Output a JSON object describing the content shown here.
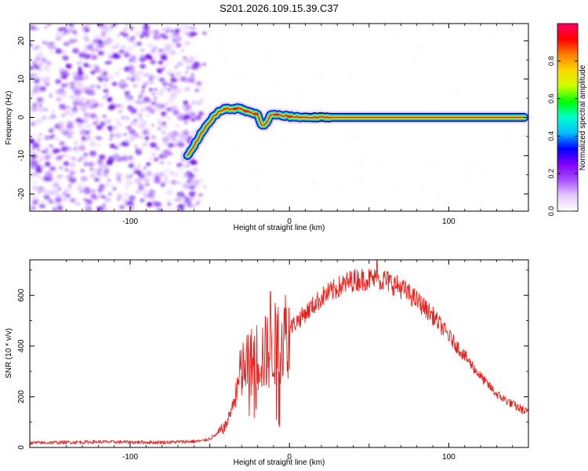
{
  "title": "S201.2026.109.15.39.C37",
  "colors": {
    "line": "#e8231f",
    "trace_red": "#ff1a1a",
    "noise": "#7f20ff",
    "axis": "#000000",
    "frame_bg": "#ffffff"
  },
  "chart_data": [
    {
      "type": "heatmap",
      "name": "spectrogram",
      "title": "S201.2026.109.15.39.C37",
      "xlabel": "Height of straight line (km)",
      "ylabel": "Frequency (Hz)",
      "xlim": [
        -163,
        150
      ],
      "ylim": [
        -24.5,
        24.5
      ],
      "xticks": [
        -100,
        0,
        100
      ],
      "yticks": [
        -20,
        -10,
        0,
        10,
        20
      ],
      "xtick_labels": [
        "-100",
        "0",
        "100"
      ],
      "ytick_labels": [
        "-20",
        "-10",
        "0",
        "10",
        "20"
      ],
      "noise_region_x": [
        -163,
        -60
      ],
      "trace": {
        "x": [
          -64,
          -60,
          -56,
          -52,
          -48,
          -44,
          -40,
          -36,
          -32,
          -28,
          -24,
          -20,
          -18,
          -16,
          -14,
          -12,
          -10,
          -8,
          -6,
          -4,
          -2,
          0,
          5,
          10,
          20,
          40,
          80,
          120,
          148
        ],
        "y": [
          -10,
          -7.5,
          -4.5,
          -2,
          0,
          1.5,
          2.3,
          2,
          2.5,
          1.7,
          1.2,
          0.8,
          -1.8,
          -2.3,
          -1,
          0.5,
          0.8,
          0.7,
          0.5,
          0.3,
          0.4,
          0.2,
          0.1,
          0,
          0,
          0,
          0,
          0,
          0
        ]
      },
      "colorbar": {
        "label": "Normalized spectral amplitude",
        "range": [
          0,
          1
        ],
        "ticks": [
          0.0,
          0.2,
          0.4,
          0.6,
          0.8
        ],
        "tick_labels": [
          "0.0",
          "0.2",
          "0.4",
          "0.6",
          "0.8"
        ],
        "stops": [
          "#ffffff",
          "#e6ccff",
          "#a64dff",
          "#7f00ff",
          "#0000ff",
          "#00bfff",
          "#00ffcc",
          "#00ff00",
          "#ccff00",
          "#ffd700",
          "#ff8000",
          "#ff0000",
          "#ff0066"
        ]
      }
    },
    {
      "type": "line",
      "name": "snr",
      "xlabel": "Height of straight line (km)",
      "ylabel": "SNR (10 * v/v)",
      "xlim": [
        -163,
        150
      ],
      "ylim": [
        0,
        740
      ],
      "xticks": [
        -100,
        0,
        100
      ],
      "yticks": [
        0,
        200,
        400,
        600
      ],
      "xtick_labels": [
        "-100",
        "0",
        "100"
      ],
      "ytick_labels": [
        "0",
        "200",
        "400",
        "600"
      ],
      "series": [
        {
          "name": "SNR",
          "envelope_x": [
            -163,
            -120,
            -80,
            -55,
            -50,
            -45,
            -40,
            -35,
            -30,
            -25,
            -20,
            -15,
            -10,
            -5,
            0,
            10,
            20,
            30,
            40,
            50,
            60,
            70,
            80,
            90,
            100,
            110,
            120,
            130,
            140,
            150
          ],
          "envelope_y": [
            18,
            22,
            20,
            25,
            35,
            55,
            85,
            180,
            300,
            330,
            360,
            370,
            400,
            430,
            470,
            530,
            590,
            630,
            660,
            665,
            660,
            630,
            580,
            520,
            440,
            360,
            280,
            210,
            170,
            135
          ],
          "spikes_x": [
            -12,
            55
          ],
          "spikes_y": [
            615,
            740
          ]
        }
      ]
    }
  ]
}
